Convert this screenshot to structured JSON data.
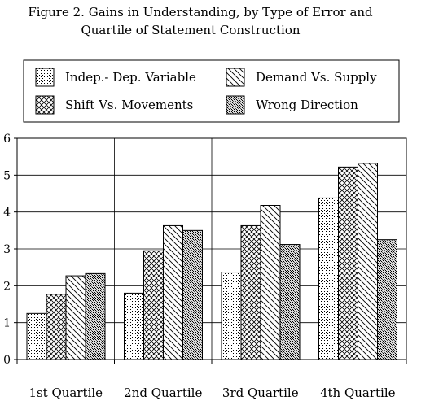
{
  "chart_data": {
    "type": "bar",
    "title_line1": "Figure 2. Gains in Understanding, by Type of Error and",
    "title_line2": "Quartile of Statement Construction",
    "xlabel": "",
    "ylabel": "",
    "ylim": [
      0,
      6
    ],
    "yticks": [
      "0",
      "1",
      "2",
      "3",
      "4",
      "5",
      "6"
    ],
    "grid": true,
    "legend_position": "top",
    "categories": [
      "1st Quartile",
      "2nd Quartile",
      "3rd Quartile",
      "4th Quartile"
    ],
    "series": [
      {
        "name": "Indep.- Dep. Variable",
        "pattern": "dots",
        "values": [
          1.25,
          1.8,
          2.37,
          4.38
        ]
      },
      {
        "name": "Shift Vs. Movements",
        "pattern": "crosshatch",
        "values": [
          1.77,
          2.95,
          3.63,
          5.22
        ]
      },
      {
        "name": "Demand Vs. Supply",
        "pattern": "diagonal",
        "values": [
          2.27,
          3.63,
          4.18,
          5.32
        ]
      },
      {
        "name": "Wrong Direction",
        "pattern": "dense",
        "values": [
          2.33,
          3.5,
          3.12,
          3.25
        ]
      }
    ]
  }
}
